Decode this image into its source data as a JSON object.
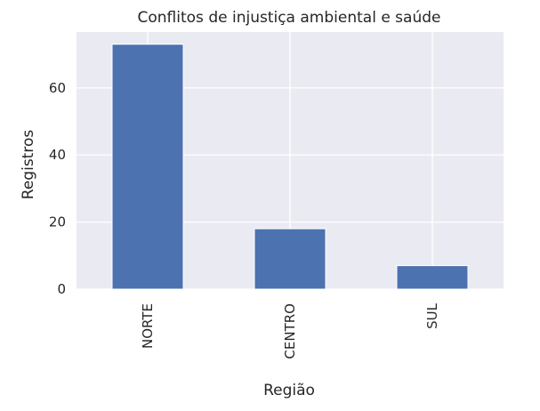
{
  "chart_data": {
    "type": "bar",
    "title": "Conflitos de injustiça ambiental e saúde",
    "xlabel": "Região",
    "ylabel": "Registros",
    "categories": [
      "NORTE",
      "CENTRO",
      "SUL"
    ],
    "values": [
      73,
      18,
      7
    ],
    "ylim": [
      0,
      76.65
    ],
    "yticks": [
      0,
      20,
      40,
      60
    ],
    "grid": true,
    "legend": "none",
    "colors": {
      "bar": "#4c72b0",
      "plot_background": "#eaeaf2",
      "grid": "#ffffff"
    }
  }
}
